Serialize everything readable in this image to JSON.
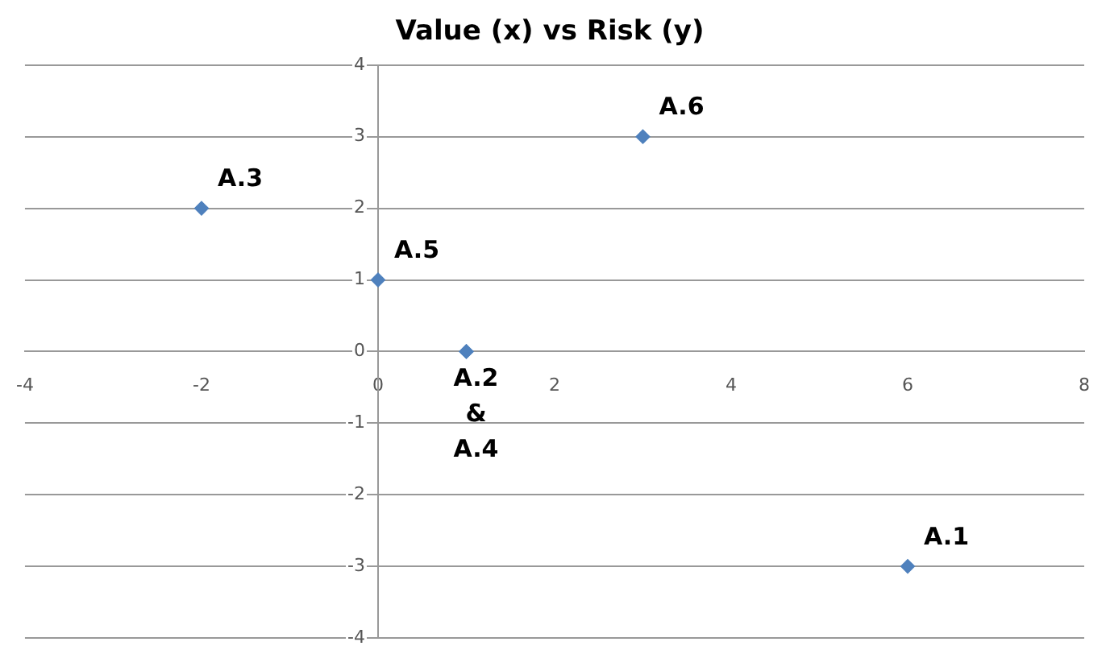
{
  "chart_data": {
    "type": "scatter",
    "title": "Value (x) vs Risk (y)",
    "x": [
      6,
      1,
      -2,
      1,
      0,
      3
    ],
    "values": [
      -3,
      0,
      2,
      0,
      1,
      3
    ],
    "color": "#4f81bd",
    "marker": "diamond",
    "xlim": [
      -4,
      8
    ],
    "xticks": [
      -4,
      -2,
      0,
      2,
      4,
      6,
      8
    ],
    "ylim": [
      -4,
      4
    ],
    "yticks": [
      -4,
      -3,
      -2,
      -1,
      0,
      1,
      2,
      3,
      4
    ],
    "grid": "y",
    "legend": false,
    "annotations": [
      {
        "text": "A.1",
        "x": 6,
        "y": -3
      },
      {
        "text": "A.2\n&\nA.4",
        "x": 1,
        "y": 0
      },
      {
        "text": "A.3",
        "x": -2,
        "y": 2
      },
      {
        "text": "A.5",
        "x": 0,
        "y": 1
      },
      {
        "text": "A.6",
        "x": 3,
        "y": 3
      }
    ]
  }
}
